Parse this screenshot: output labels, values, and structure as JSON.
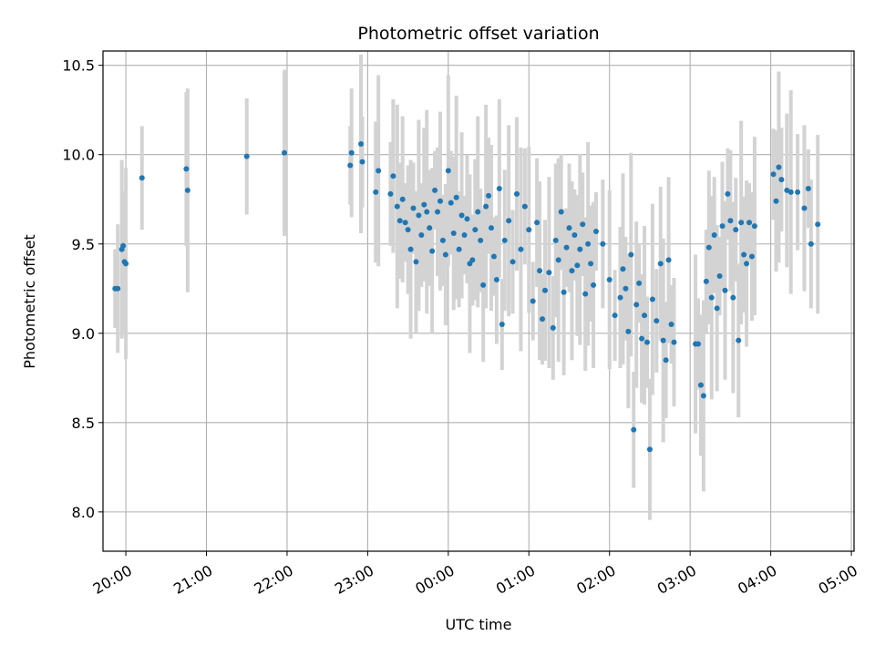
{
  "chart_data": {
    "type": "scatter",
    "title": "Photometric offset variation",
    "xlabel": "UTC time",
    "ylabel": "Photometric offset",
    "x_ticks": [
      "20:00",
      "21:00",
      "22:00",
      "23:00",
      "00:00",
      "01:00",
      "02:00",
      "03:00",
      "04:00",
      "05:00"
    ],
    "y_ticks": [
      "8.0",
      "8.5",
      "9.0",
      "9.5",
      "10.0",
      "10.5"
    ],
    "xlim": [
      "19:43",
      "05:02"
    ],
    "ylim": [
      7.78,
      10.58
    ],
    "grid": true,
    "point_color": "#1f77b4",
    "errorbar_color": "#d3d3d3",
    "series": [
      {
        "x": [
          "19:52",
          "19:54",
          "19:57",
          "19:58",
          "19:59",
          "20:00",
          "20:12",
          "20:45",
          "20:46",
          "21:30",
          "21:58",
          "22:47",
          "22:48",
          "22:55",
          "22:56",
          "23:06",
          "23:08",
          "23:17",
          "23:19",
          "23:22",
          "23:24",
          "23:26",
          "23:28",
          "23:30",
          "23:32",
          "23:34",
          "23:36",
          "23:38",
          "23:40",
          "23:42",
          "23:44",
          "23:46",
          "23:48",
          "23:50",
          "23:52",
          "23:54",
          "23:56",
          "23:58",
          "00:00",
          "00:02",
          "00:04",
          "00:06",
          "00:08",
          "00:10",
          "00:12",
          "00:14",
          "00:16",
          "00:18",
          "00:20",
          "00:22",
          "00:24",
          "00:26",
          "00:28",
          "00:30",
          "00:32",
          "00:34",
          "00:36",
          "00:38",
          "00:40",
          "00:42",
          "00:45",
          "00:48",
          "00:51",
          "00:54",
          "00:57",
          "01:00",
          "01:03",
          "01:06",
          "01:08",
          "01:10",
          "01:12",
          "01:15",
          "01:18",
          "01:20",
          "01:22",
          "01:24",
          "01:26",
          "01:28",
          "01:30",
          "01:32",
          "01:34",
          "01:36",
          "01:38",
          "01:40",
          "01:42",
          "01:44",
          "01:46",
          "01:48",
          "01:50",
          "01:55",
          "02:00",
          "02:04",
          "02:08",
          "02:10",
          "02:12",
          "02:14",
          "02:16",
          "02:18",
          "02:20",
          "02:22",
          "02:24",
          "02:26",
          "02:28",
          "02:30",
          "02:32",
          "02:35",
          "02:38",
          "02:40",
          "02:42",
          "02:44",
          "02:46",
          "02:48",
          "03:04",
          "03:06",
          "03:08",
          "03:10",
          "03:12",
          "03:14",
          "03:16",
          "03:18",
          "03:20",
          "03:22",
          "03:24",
          "03:26",
          "03:28",
          "03:30",
          "03:32",
          "03:34",
          "03:36",
          "03:38",
          "03:40",
          "03:42",
          "03:44",
          "03:46",
          "03:48",
          "04:02",
          "04:04",
          "04:06",
          "04:08",
          "04:12",
          "04:15",
          "04:20",
          "04:25",
          "04:28",
          "04:30",
          "04:35"
        ],
        "y": [
          9.25,
          9.25,
          9.47,
          9.49,
          9.4,
          9.39,
          9.87,
          9.92,
          9.8,
          9.99,
          10.01,
          9.94,
          10.01,
          10.06,
          9.96,
          9.79,
          9.91,
          9.78,
          9.88,
          9.71,
          9.63,
          9.75,
          9.62,
          9.58,
          9.47,
          9.7,
          9.4,
          9.66,
          9.55,
          9.72,
          9.68,
          9.59,
          9.46,
          9.8,
          9.68,
          9.74,
          9.52,
          9.44,
          9.91,
          9.73,
          9.56,
          9.76,
          9.47,
          9.66,
          9.55,
          9.64,
          9.39,
          9.41,
          9.58,
          9.68,
          9.52,
          9.27,
          9.71,
          9.77,
          9.59,
          9.43,
          9.3,
          9.81,
          9.05,
          9.52,
          9.63,
          9.4,
          9.78,
          9.47,
          9.71,
          9.58,
          9.18,
          9.62,
          9.35,
          9.08,
          9.24,
          9.34,
          9.03,
          9.52,
          9.41,
          9.68,
          9.23,
          9.48,
          9.59,
          9.35,
          9.55,
          9.38,
          9.47,
          9.61,
          9.22,
          9.5,
          9.39,
          9.27,
          9.57,
          9.5,
          9.3,
          9.1,
          9.2,
          9.36,
          9.25,
          9.01,
          9.44,
          8.46,
          9.16,
          9.28,
          8.97,
          9.1,
          8.95,
          8.35,
          9.19,
          9.07,
          9.39,
          8.96,
          8.85,
          9.41,
          9.05,
          8.95,
          8.94,
          8.94,
          8.71,
          8.65,
          9.29,
          9.48,
          9.2,
          9.55,
          9.14,
          9.32,
          9.6,
          9.24,
          9.78,
          9.63,
          9.2,
          9.58,
          8.96,
          9.62,
          9.44,
          9.39,
          9.62,
          9.43,
          9.6,
          9.89,
          9.74,
          9.93,
          9.86,
          9.8,
          9.79,
          9.79,
          9.7,
          9.81,
          9.5,
          9.61
        ]
      }
    ]
  }
}
